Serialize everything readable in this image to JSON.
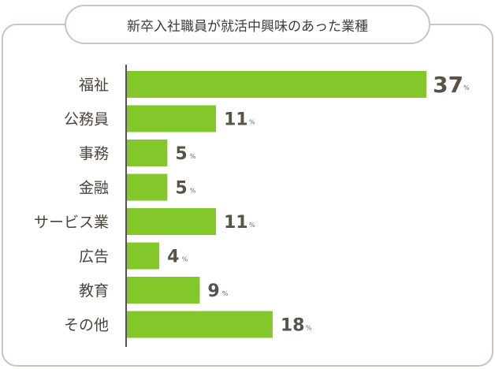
{
  "chart_data": {
    "type": "bar",
    "orientation": "horizontal",
    "title": "新卒入社職員が就活中興味のあった業種",
    "categories": [
      "福祉",
      "公務員",
      "事務",
      "金融",
      "サービス業",
      "広告",
      "教育",
      "その他"
    ],
    "values": [
      37,
      11,
      5,
      5,
      11,
      4,
      9,
      18
    ],
    "value_unit": "%",
    "xlim": [
      0,
      40
    ],
    "grid": false,
    "legend": "none",
    "bar_color": "#84c72a"
  }
}
